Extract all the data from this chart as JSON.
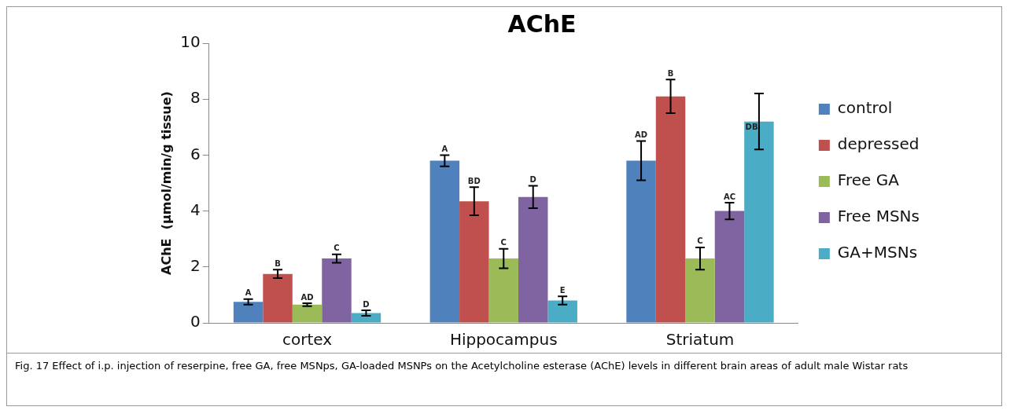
{
  "chart_data": {
    "type": "bar",
    "title": "AChE",
    "ylabel": "AChE  (µmol/min/g tissue)",
    "categories": [
      "cortex",
      "Hippocampus",
      "Striatum"
    ],
    "series": [
      {
        "name": "control",
        "color": "#4f81bd",
        "values": [
          0.75,
          5.8,
          5.8
        ],
        "errors": [
          0.1,
          0.2,
          0.7
        ],
        "value_labels": [
          "A",
          "A",
          "AD"
        ]
      },
      {
        "name": "depressed",
        "color": "#c0504d",
        "values": [
          1.75,
          4.35,
          8.1
        ],
        "errors": [
          0.15,
          0.5,
          0.6
        ],
        "value_labels": [
          "B",
          "BD",
          "B"
        ]
      },
      {
        "name": "Free GA",
        "color": "#9bbb59",
        "values": [
          0.65,
          2.3,
          2.3
        ],
        "errors": [
          0.05,
          0.35,
          0.4
        ],
        "value_labels": [
          "AD",
          "C",
          "C"
        ]
      },
      {
        "name": "Free MSNs",
        "color": "#8064a2",
        "values": [
          2.3,
          4.5,
          4.0
        ],
        "errors": [
          0.15,
          0.4,
          0.3
        ],
        "value_labels": [
          "C",
          "D",
          "AC"
        ]
      },
      {
        "name": "GA+MSNs",
        "color": "#4bacc6",
        "values": [
          0.35,
          0.8,
          7.2
        ],
        "errors": [
          0.1,
          0.15,
          1.0
        ],
        "value_labels": [
          "D",
          "E",
          "DB"
        ]
      }
    ],
    "ylim": [
      0,
      10
    ],
    "yticks": [
      0,
      2,
      4,
      6,
      8,
      10
    ],
    "grid": false,
    "legend": "right",
    "annotations": [
      "Fig. 17  Effect of i.p. injection of reserpine, free GA, free MSNps, GA-loaded MSNPs on the Acetylcholine esterase (AChE) levels in different brain areas of adult male Wistar rats"
    ]
  }
}
